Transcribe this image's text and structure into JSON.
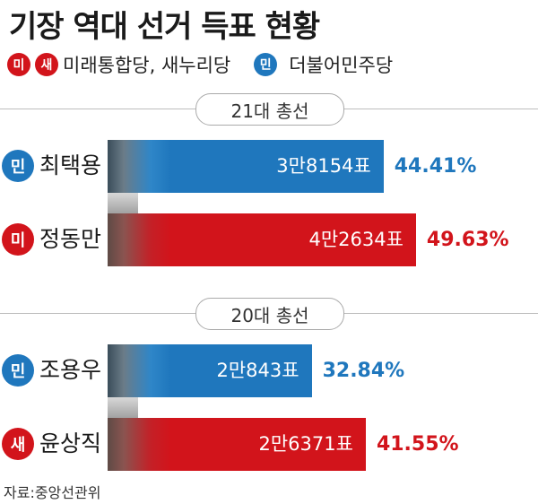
{
  "title": "기장 역대 선거 득표 현황",
  "legend": {
    "party_a_badges": [
      "미",
      "새"
    ],
    "party_a_label": "미래통합당, 새누리당",
    "party_b_badge": "민",
    "party_b_label": "더불어민주당"
  },
  "colors": {
    "party_red": "#d2141b",
    "party_blue": "#1f77bd"
  },
  "source": "자료:중앙선관위",
  "chart_data": {
    "type": "bar",
    "title": "기장 역대 선거 득표 현황",
    "sections": [
      {
        "label": "21대 총선",
        "candidates": [
          {
            "badge": "민",
            "name": "최택용",
            "votes": 38154,
            "votes_label": "3만8154표",
            "pct": 44.41,
            "pct_label": "44.41%",
            "color": "blue"
          },
          {
            "badge": "미",
            "name": "정동만",
            "votes": 42634,
            "votes_label": "4만2634표",
            "pct": 49.63,
            "pct_label": "49.63%",
            "color": "red"
          }
        ]
      },
      {
        "label": "20대 총선",
        "candidates": [
          {
            "badge": "민",
            "name": "조용우",
            "votes": 20843,
            "votes_label": "2만843표",
            "pct": 32.84,
            "pct_label": "32.84%",
            "color": "blue"
          },
          {
            "badge": "새",
            "name": "윤상직",
            "votes": 26371,
            "votes_label": "2만6371표",
            "pct": 41.55,
            "pct_label": "41.55%",
            "color": "red"
          }
        ]
      }
    ]
  }
}
